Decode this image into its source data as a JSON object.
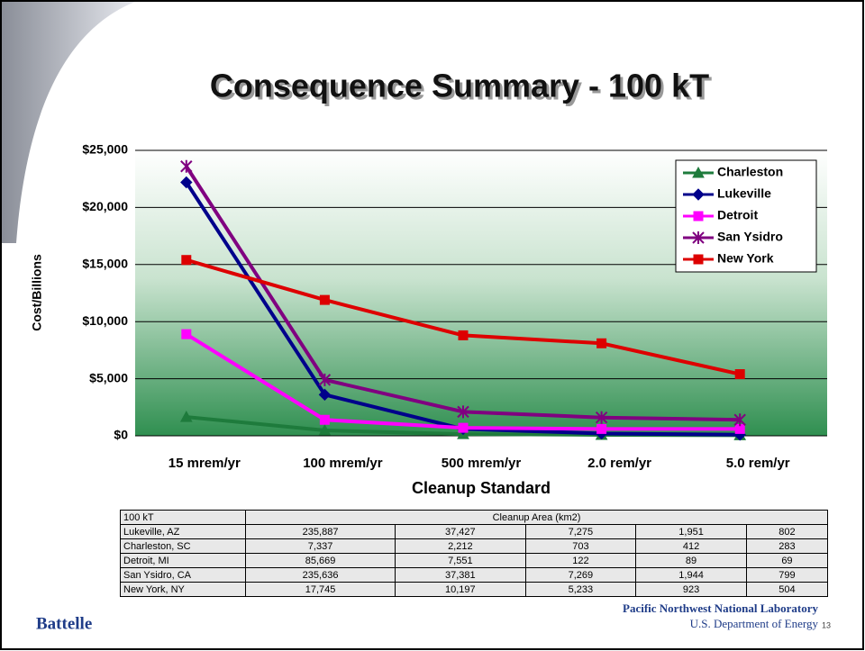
{
  "chart_data": {
    "type": "line",
    "title": "Consequence Summary - 100 kT",
    "y_label": "Cost/Billions",
    "x_label": "Cleanup Standard",
    "categories": [
      "15 mrem/yr",
      "100 mrem/yr",
      "500 mrem/yr",
      "2.0 rem/yr",
      "5.0 rem/yr"
    ],
    "series": [
      {
        "name": "Charleston",
        "color": "#1e7b3c",
        "marker": "triangle",
        "values": [
          1650,
          470,
          150,
          80,
          50
        ]
      },
      {
        "name": "Lukeville",
        "color": "#00008b",
        "marker": "diamond",
        "values": [
          22200,
          3600,
          600,
          200,
          100
        ]
      },
      {
        "name": "Detroit",
        "color": "#ff00ff",
        "marker": "square",
        "values": [
          8900,
          1400,
          700,
          600,
          600
        ]
      },
      {
        "name": "San Ysidro",
        "color": "#800080",
        "marker": "star",
        "values": [
          23600,
          4900,
          2100,
          1600,
          1400
        ]
      },
      {
        "name": "New York",
        "color": "#dd0000",
        "marker": "square",
        "values": [
          15400,
          11900,
          8800,
          8100,
          5400
        ]
      }
    ],
    "ylim": [
      0,
      25000
    ],
    "yticks": [
      {
        "value": 0,
        "label": "$0"
      },
      {
        "value": 5000,
        "label": "$5,000"
      },
      {
        "value": 10000,
        "label": "$10,000"
      },
      {
        "value": 15000,
        "label": "$15,000"
      },
      {
        "value": 20000,
        "label": "$20,000"
      },
      {
        "value": 25000,
        "label": "$25,000"
      }
    ],
    "grid": true,
    "legend": "top-right"
  },
  "table": {
    "header": [
      "100 kT",
      "Cleanup Area (km2)"
    ],
    "rows": [
      [
        "Lukeville, AZ",
        "235,887",
        "37,427",
        "7,275",
        "1,951",
        "802"
      ],
      [
        "Charleston, SC",
        "7,337",
        "2,212",
        "703",
        "412",
        "283"
      ],
      [
        "Detroit, MI",
        "85,669",
        "7,551",
        "122",
        "89",
        "69"
      ],
      [
        "San Ysidro, CA",
        "235,636",
        "37,381",
        "7,269",
        "1,944",
        "799"
      ],
      [
        "New York, NY",
        "17,745",
        "10,197",
        "5,233",
        "923",
        "504"
      ]
    ]
  },
  "footer": {
    "logo": "Battelle",
    "lab": "Pacific Northwest National Laboratory",
    "dept": "U.S. Department of Energy",
    "page": "13"
  }
}
